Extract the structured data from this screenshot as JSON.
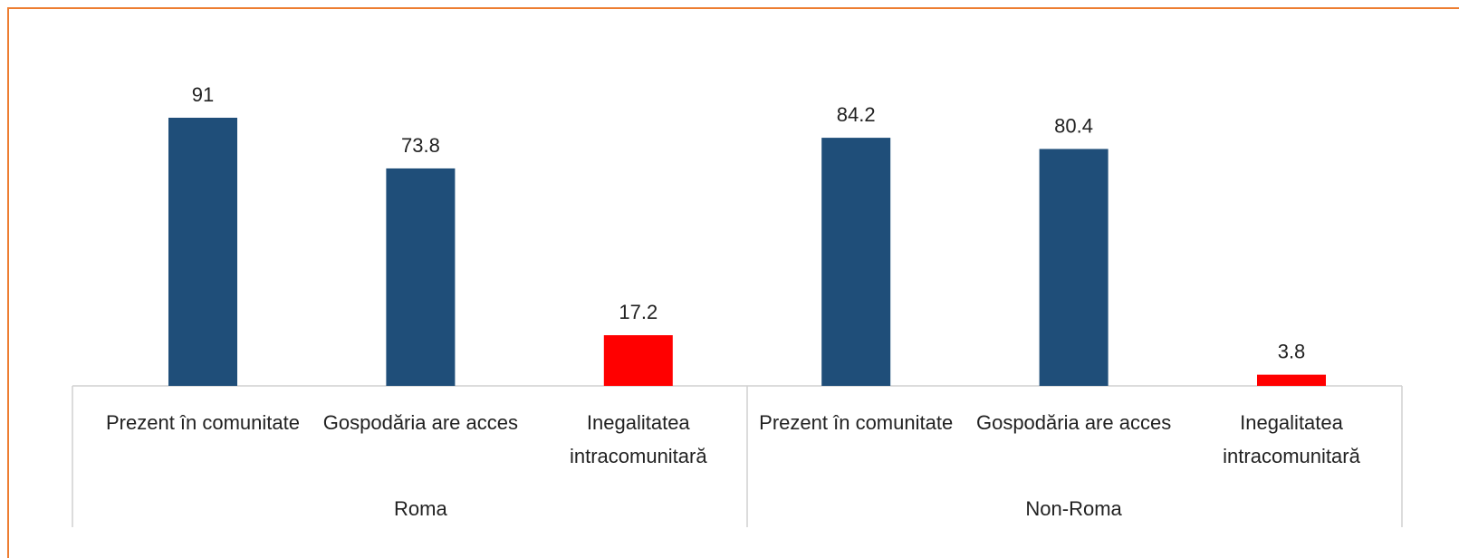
{
  "chart_data": {
    "type": "bar",
    "groups": [
      {
        "name": "Roma",
        "categories": [
          "Prezent în comunitate",
          "Gospodăria are acces",
          "Inegalitatea intracomunitară"
        ],
        "values": [
          91,
          73.8,
          17.2
        ]
      },
      {
        "name": "Non-Roma",
        "categories": [
          "Prezent în comunitate",
          "Gospodăria are acces",
          "Inegalitatea intracomunitară"
        ],
        "values": [
          84.2,
          80.4,
          3.8
        ]
      }
    ],
    "colors": [
      "#1f4e79",
      "#1f4e79",
      "#ff0000"
    ]
  }
}
